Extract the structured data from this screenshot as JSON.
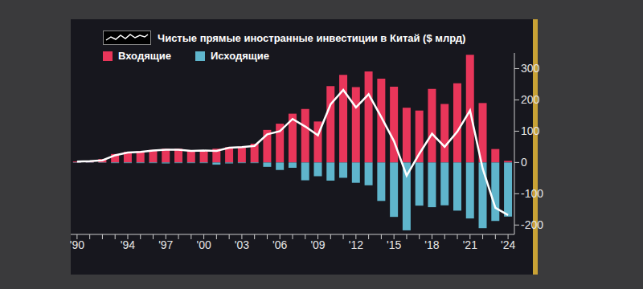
{
  "chart_data": {
    "type": "bar",
    "stacked": true,
    "legend": "upper left",
    "grid": false,
    "categories": [
      "'90",
      null,
      null,
      null,
      "'94",
      null,
      null,
      "'97",
      null,
      null,
      "'00",
      null,
      null,
      "'03",
      null,
      null,
      "'06",
      null,
      null,
      "'09",
      null,
      null,
      "'12",
      null,
      null,
      "'15",
      null,
      null,
      "'18",
      null,
      null,
      "'21",
      null,
      null,
      "'24"
    ],
    "ylim": [
      -230,
      350
    ],
    "yticks": [
      -200,
      -100,
      0,
      100,
      200,
      300
    ],
    "series": [
      {
        "name": "Чистые прямые иностранные инвестиции в Китай ($ млрд)",
        "type": "line",
        "color": "#ffffff",
        "values": [
          3,
          4,
          7,
          23,
          32,
          34,
          38,
          41,
          41,
          37,
          38,
          37,
          47,
          49,
          53,
          90,
          100,
          139,
          115,
          87,
          186,
          232,
          176,
          218,
          145,
          68,
          -42,
          28,
          92,
          50,
          99,
          166,
          -20,
          -145,
          -168
        ]
      },
      {
        "name": "Входящие",
        "type": "bar",
        "color": "#e8365a",
        "values": [
          3,
          4,
          11,
          27,
          34,
          36,
          40,
          44,
          44,
          38,
          38,
          44,
          49,
          50,
          60,
          104,
          124,
          156,
          171,
          131,
          244,
          280,
          241,
          291,
          268,
          242,
          175,
          166,
          235,
          187,
          253,
          344,
          190,
          43,
          5
        ]
      },
      {
        "name": "Исходящие",
        "type": "bar",
        "color": "#5fb5cc",
        "values": [
          -1,
          -1,
          -1,
          -2,
          -2,
          -2,
          -2,
          -3,
          -2,
          -2,
          -2,
          -7,
          -3,
          -2,
          -2,
          -14,
          -24,
          -17,
          -57,
          -44,
          -58,
          -49,
          -65,
          -73,
          -123,
          -174,
          -217,
          -138,
          -143,
          -137,
          -154,
          -179,
          -210,
          -187,
          -173
        ]
      }
    ]
  }
}
